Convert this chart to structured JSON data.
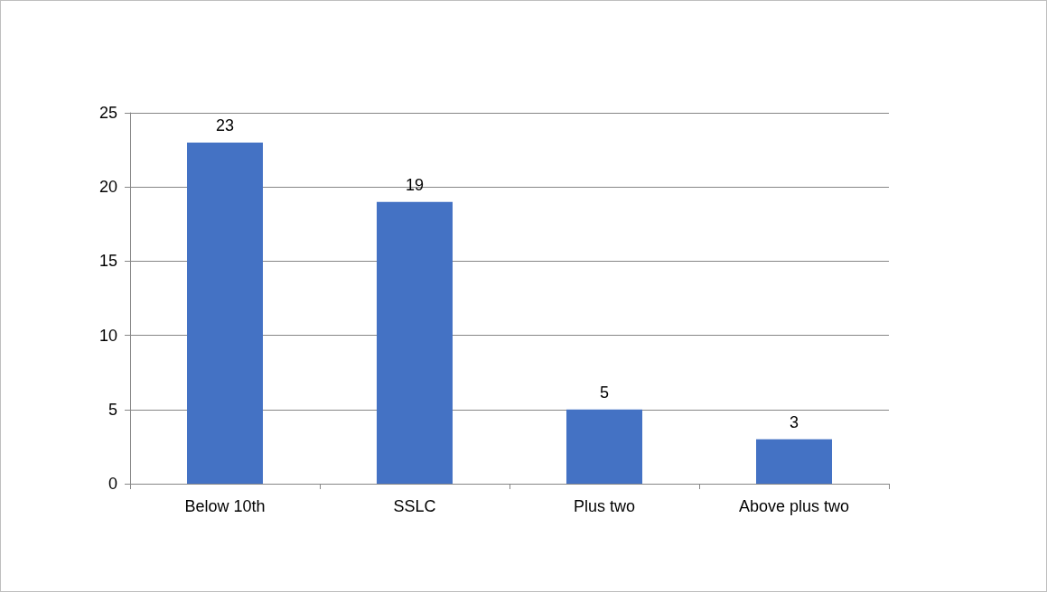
{
  "chart_data": {
    "type": "bar",
    "categories": [
      "Below 10th",
      "SSLC",
      "Plus two",
      "Above plus two"
    ],
    "values": [
      23,
      19,
      5,
      3
    ],
    "color": "#4472c4",
    "ylim": [
      0,
      25
    ],
    "yticks": [
      0,
      5,
      10,
      15,
      20,
      25
    ],
    "grid": "y",
    "data_labels": true
  }
}
